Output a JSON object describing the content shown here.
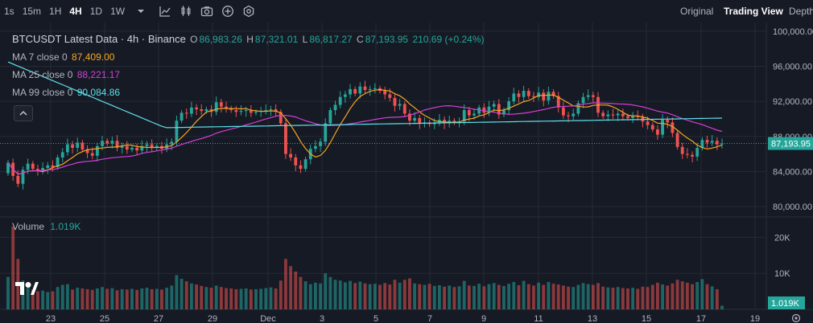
{
  "toolbar": {
    "timeframes": [
      "1s",
      "15m",
      "1H",
      "4H",
      "1D",
      "1W"
    ],
    "active_timeframe": "4H",
    "icons": [
      "chevron-down-icon",
      "line-chart-icon",
      "candles-icon",
      "camera-icon",
      "plus-circle-icon",
      "settings-hex-icon"
    ],
    "views": [
      "Original",
      "Trading View",
      "Depth"
    ],
    "active_view": "Trading View"
  },
  "legend": {
    "title": "BTCUSDT Latest Data · 4h · Binance",
    "ohlc": {
      "o_label": "O",
      "o": "86,983.26",
      "h_label": "H",
      "h": "87,321.01",
      "l_label": "L",
      "l": "86,817.27",
      "c_label": "C",
      "c": "87,193.95",
      "change": "210.69 (+0.24%)"
    },
    "ma": [
      {
        "label": "MA 7 close 0",
        "value": "87,409.00",
        "color": "#f5a623"
      },
      {
        "label": "MA 25 close 0",
        "value": "88,221.17",
        "color": "#d33fd6"
      },
      {
        "label": "MA 99 close 0",
        "value": "90,084.86",
        "color": "#5ee0e8"
      }
    ]
  },
  "volume": {
    "label": "Volume",
    "value": "1.019K"
  },
  "price_axis": {
    "ticks": [
      "100,000.00",
      "96,000.00",
      "92,000.00",
      "88,000.00",
      "84,000.00",
      "80,000.00"
    ],
    "current_price": "87,193.95"
  },
  "volume_axis": {
    "ticks": [
      "20K",
      "10K"
    ],
    "current": "1.019K"
  },
  "time_axis": {
    "labels": [
      "23",
      "25",
      "27",
      "29",
      "Dec",
      "3",
      "5",
      "7",
      "9",
      "11",
      "13",
      "15",
      "17",
      "19"
    ]
  },
  "colors": {
    "up": "#26a69a",
    "down": "#ef5350",
    "background": "#161a25",
    "grid": "#262a35"
  },
  "chart_data": {
    "type": "candlestick",
    "price_range": [
      79000,
      101000
    ],
    "volume_range": [
      0,
      25000
    ],
    "series_ma": [
      "MA 7",
      "MA 25",
      "MA 99"
    ],
    "closes": [
      85000,
      83500,
      82600,
      84200,
      84900,
      84300,
      84100,
      84400,
      84700,
      84500,
      85600,
      86200,
      87100,
      86700,
      87300,
      86500,
      86100,
      85800,
      86900,
      87500,
      87200,
      87500,
      86700,
      86900,
      86500,
      86700,
      86400,
      86900,
      87100,
      86700,
      86900,
      86600,
      87100,
      87400,
      89800,
      90700,
      90600,
      91300,
      91100,
      90900,
      91100,
      90800,
      91900,
      91400,
      91200,
      91000,
      90800,
      90900,
      91000,
      90700,
      90800,
      90900,
      91000,
      91100,
      90800,
      89500,
      86000,
      85600,
      84700,
      84300,
      85400,
      86600,
      86900,
      87400,
      89500,
      91000,
      91600,
      92500,
      92800,
      93400,
      92900,
      93700,
      93300,
      93400,
      93500,
      93200,
      92800,
      92400,
      91500,
      91700,
      90600,
      89800,
      90100,
      89500,
      89600,
      89400,
      89600,
      89900,
      89500,
      89800,
      89600,
      89700,
      91000,
      90400,
      90600,
      91300,
      90700,
      91400,
      91700,
      90500,
      91000,
      92000,
      92900,
      92500,
      93200,
      92600,
      92500,
      93000,
      92100,
      93100,
      92600,
      91300,
      90400,
      90300,
      90600,
      91800,
      92500,
      92700,
      92500,
      90700,
      90300,
      90500,
      90400,
      90600,
      90300,
      90100,
      90300,
      90200,
      89700,
      89300,
      88800,
      88200,
      89900,
      89600,
      88400,
      86800,
      86000,
      85900,
      85700,
      86700,
      87600,
      87300,
      87500,
      87100,
      87200
    ],
    "volumes": [
      9000,
      23000,
      14000,
      8000,
      6000,
      5500,
      5000,
      5200,
      4800,
      5000,
      6200,
      6800,
      7000,
      5500,
      6000,
      5800,
      5600,
      5400,
      5800,
      6200,
      5700,
      5900,
      5300,
      5600,
      5500,
      5700,
      5400,
      5800,
      6000,
      5600,
      5700,
      5500,
      6000,
      6600,
      9500,
      8500,
      7800,
      7200,
      6900,
      6500,
      6200,
      6000,
      6600,
      6200,
      5900,
      5800,
      5600,
      5700,
      5800,
      5500,
      5600,
      5700,
      5900,
      6100,
      5800,
      8000,
      14000,
      12000,
      10500,
      9000,
      7800,
      7000,
      7400,
      7200,
      10000,
      9000,
      8200,
      8000,
      7500,
      7900,
      7300,
      7700,
      7200,
      7000,
      7100,
      6800,
      7300,
      6900,
      8200,
      7400,
      8200,
      8600,
      7200,
      7000,
      6800,
      7100,
      6500,
      6700,
      6300,
      6600,
      6200,
      6400,
      7900,
      6600,
      6500,
      7100,
      6400,
      7000,
      7300,
      6800,
      6500,
      7100,
      7600,
      6700,
      7900,
      7000,
      6600,
      7400,
      6800,
      7600,
      7100,
      6900,
      6600,
      6300,
      6200,
      6800,
      7300,
      7000,
      6800,
      7300,
      6300,
      6100,
      6000,
      6200,
      5900,
      5800,
      6000,
      5700,
      6300,
      6200,
      6800,
      7400,
      6900,
      6600,
      7200,
      8200,
      7800,
      7400,
      7000,
      7600,
      8400,
      7000,
      6400,
      5600,
      1019
    ]
  }
}
